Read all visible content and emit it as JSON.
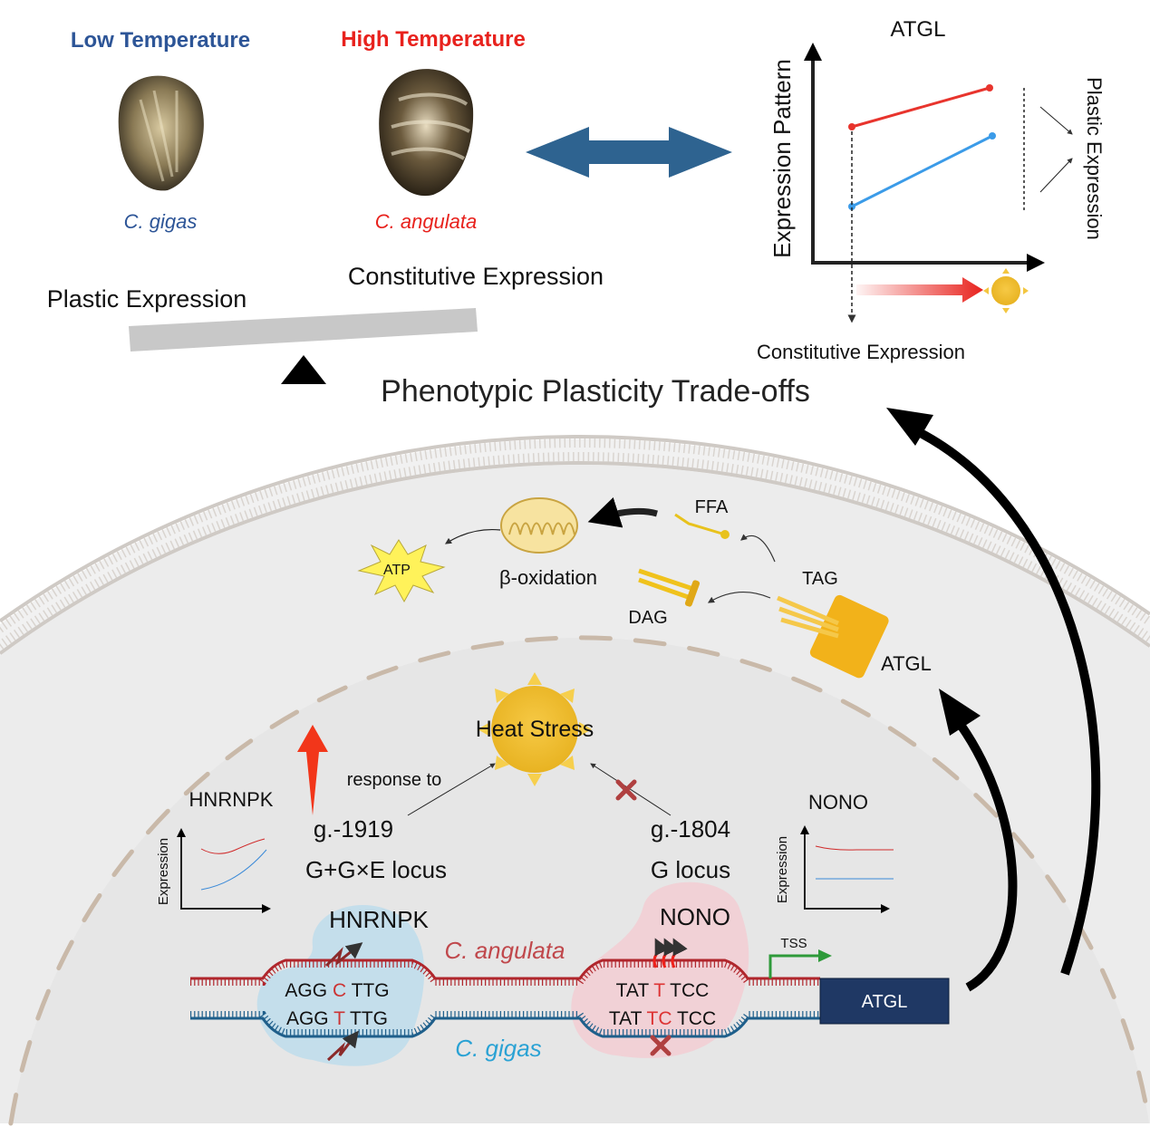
{
  "top": {
    "low_temp": "Low Temperature",
    "high_temp": "High Temperature",
    "species_gigas": "C. gigas",
    "species_angulata": "C. angulata",
    "constitutive": "Constitutive Expression",
    "plastic": "Plastic Expression",
    "tradeoffs": "Phenotypic Plasticity Trade-offs"
  },
  "atgl_chart": {
    "title": "ATGL",
    "ylabel": "Expression Pattern",
    "right_label": "Plastic Expression",
    "bottom_label": "Constitutive Expression"
  },
  "cell": {
    "ffa": "FFA",
    "tag": "TAG",
    "dag": "DAG",
    "atp": "ATP",
    "beta_ox": "β-oxidation",
    "atgl_protein": "ATGL",
    "heat_stress": "Heat Stress",
    "response_to": "response to",
    "snp1": "g.-1919",
    "snp2": "g.-1804",
    "locus1": "G+G×E locus",
    "locus2": "G locus",
    "hnrnpk_chart_title": "HNRNPK",
    "nono_chart_title": "NONO",
    "expression_axis": "Expression",
    "hnrnpk_factor": "HNRNPK",
    "nono_factor": "NONO",
    "angulata": "C. angulata",
    "gigas": "C. gigas",
    "seq1_top_a": "AGG ",
    "seq1_top_b": "C",
    "seq1_top_c": " TTG",
    "seq1_bot_a": "AGG ",
    "seq1_bot_b": "T",
    "seq1_bot_c": " TTG",
    "seq2_top_a": "TAT ",
    "seq2_top_b": "T",
    "seq2_top_c": " TCC",
    "seq2_bot_a": "TAT ",
    "seq2_bot_b": "TC",
    "seq2_bot_c": " TCC",
    "tss": "TSS",
    "gene": "ATGL"
  },
  "colors": {
    "low": "#2d5597",
    "high": "#e8221d",
    "angulata_strand": "#b0262c",
    "gigas_strand": "#1f5f8b",
    "gene_box": "#1f3864"
  }
}
